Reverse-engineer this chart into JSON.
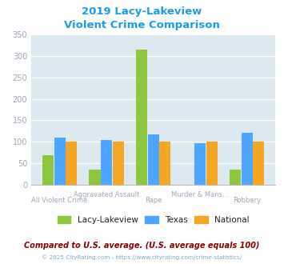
{
  "title_line1": "2019 Lacy-Lakeview",
  "title_line2": "Violent Crime Comparison",
  "categories": [
    "All Violent Crime",
    "Aggravated Assault",
    "Rape",
    "Murder & Mans...",
    "Robbery"
  ],
  "lacy_lakeview": [
    68,
    35,
    315,
    0,
    35
  ],
  "texas": [
    110,
    105,
    118,
    97,
    121
  ],
  "national": [
    100,
    100,
    100,
    100,
    100
  ],
  "colors": {
    "lacy": "#8dc63f",
    "texas": "#4da6ff",
    "national": "#f5a623"
  },
  "ylim": [
    0,
    350
  ],
  "yticks": [
    0,
    50,
    100,
    150,
    200,
    250,
    300,
    350
  ],
  "bg_color": "#dce9f0",
  "title_color": "#1b9de8",
  "axis_label_color": "#a0a8b8",
  "legend_label_color": "#222222",
  "footnote1": "Compared to U.S. average. (U.S. average equals 100)",
  "footnote2": "© 2025 CityRating.com - https://www.cityrating.com/crime-statistics/",
  "footnote1_color": "#8B0000",
  "footnote2_color": "#7fa8cc"
}
